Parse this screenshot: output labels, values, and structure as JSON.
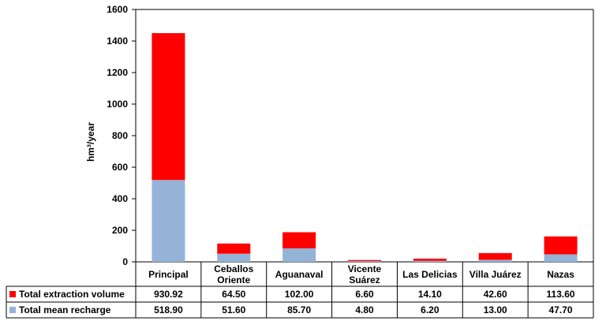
{
  "chart_data": {
    "type": "bar",
    "stacked": true,
    "title": "",
    "xlabel": "",
    "ylabel": "hm³/year",
    "ylim": [
      0,
      1600
    ],
    "yticks": [
      "0",
      "200",
      "400",
      "600",
      "800",
      "1000",
      "1200",
      "1400",
      "1600"
    ],
    "grid": false,
    "categories": [
      "Principal",
      "Ceballos Oriente",
      "Aguanaval",
      "Vicente Suárez",
      "Las Delicias",
      "Villa Juárez",
      "Nazas"
    ],
    "category_lines": [
      [
        "Principal"
      ],
      [
        "Ceballos",
        "Oriente"
      ],
      [
        "Aguanaval"
      ],
      [
        "Vicente",
        "Suárez"
      ],
      [
        "Las Delicias"
      ],
      [
        "Villa Juárez"
      ],
      [
        "Nazas"
      ]
    ],
    "series": [
      {
        "name": "Total extraction volume",
        "color": "#ff0000",
        "values": [
          930.92,
          64.5,
          102.0,
          6.6,
          14.1,
          42.6,
          113.6
        ],
        "labels": [
          "930.92",
          "64.50",
          "102.00",
          "6.60",
          "14.10",
          "42.60",
          "113.60"
        ]
      },
      {
        "name": "Total mean recharge",
        "color": "#95b3d7",
        "values": [
          518.9,
          51.6,
          85.7,
          4.8,
          6.2,
          13.0,
          47.7
        ],
        "labels": [
          "518.90",
          "51.60",
          "85.70",
          "4.80",
          "6.20",
          "13.00",
          "47.70"
        ]
      }
    ],
    "data_table": true
  }
}
